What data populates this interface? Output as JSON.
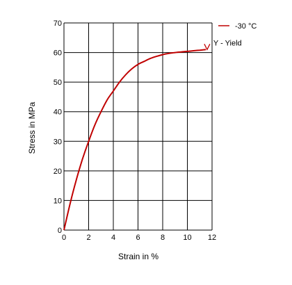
{
  "chart_data": {
    "type": "line",
    "xlabel": "Strain in %",
    "ylabel": "Stress in MPa",
    "xlim": [
      0,
      12
    ],
    "ylim": [
      0,
      70
    ],
    "x_ticks": [
      0,
      2,
      4,
      6,
      8,
      10,
      12
    ],
    "y_ticks": [
      0,
      10,
      20,
      30,
      40,
      50,
      60,
      70
    ],
    "x_tick_labels": [
      "0",
      "2",
      "4",
      "6",
      "8",
      "10",
      "12"
    ],
    "y_tick_labels": [
      "0",
      "10",
      "20",
      "30",
      "40",
      "50",
      "60",
      "70"
    ],
    "grid": true,
    "legend_position": "top-right",
    "series": [
      {
        "name": "-30 °C",
        "color": "#c00000",
        "x": [
          0,
          0.5,
          1,
          1.5,
          2,
          2.5,
          3,
          3.5,
          4,
          4.5,
          5,
          5.5,
          6,
          6.5,
          7,
          7.5,
          8,
          8.5,
          9,
          9.5,
          10,
          10.5,
          11,
          11.5
        ],
        "y": [
          0,
          9,
          17,
          24,
          30,
          35.5,
          40,
          44,
          47,
          50,
          52.5,
          54.5,
          56,
          57,
          58,
          58.7,
          59.3,
          59.7,
          60,
          60.2,
          60.4,
          60.6,
          60.8,
          61
        ]
      }
    ],
    "annotations": [
      {
        "text": "Y - Yield",
        "x": 11.6,
        "y": 61,
        "marker": "down-arrow"
      }
    ]
  }
}
